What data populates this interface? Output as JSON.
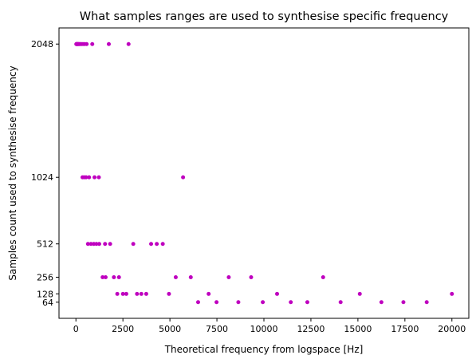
{
  "chart_data": {
    "type": "scatter",
    "title": "What samples ranges are used to synthesise specific frequency",
    "xlabel": "Theoretical frequency from logspace [Hz]",
    "ylabel": "Samples count used to synthesise frequency",
    "xlim": [
      -900,
      20900
    ],
    "ylim": [
      -60,
      2172
    ],
    "xticks": [
      0,
      2500,
      5000,
      7500,
      10000,
      12500,
      15000,
      17500,
      20000
    ],
    "yticks": [
      64,
      128,
      256,
      512,
      1024,
      2048
    ],
    "marker_color": "#bf00bf",
    "grid": false,
    "legend": "none",
    "points": [
      {
        "x": 20,
        "y": 2048
      },
      {
        "x": 30,
        "y": 2048
      },
      {
        "x": 45,
        "y": 2048
      },
      {
        "x": 60,
        "y": 2048
      },
      {
        "x": 80,
        "y": 2048
      },
      {
        "x": 100,
        "y": 2048
      },
      {
        "x": 125,
        "y": 2048
      },
      {
        "x": 155,
        "y": 2048
      },
      {
        "x": 190,
        "y": 2048
      },
      {
        "x": 240,
        "y": 2048
      },
      {
        "x": 300,
        "y": 2048
      },
      {
        "x": 375,
        "y": 2048
      },
      {
        "x": 460,
        "y": 2048
      },
      {
        "x": 570,
        "y": 2048
      },
      {
        "x": 870,
        "y": 2048
      },
      {
        "x": 1750,
        "y": 2048
      },
      {
        "x": 2800,
        "y": 2048
      },
      {
        "x": 350,
        "y": 1024
      },
      {
        "x": 440,
        "y": 1024
      },
      {
        "x": 540,
        "y": 1024
      },
      {
        "x": 700,
        "y": 1024
      },
      {
        "x": 990,
        "y": 1024
      },
      {
        "x": 1220,
        "y": 1024
      },
      {
        "x": 5700,
        "y": 1024
      },
      {
        "x": 640,
        "y": 512
      },
      {
        "x": 800,
        "y": 512
      },
      {
        "x": 950,
        "y": 512
      },
      {
        "x": 1090,
        "y": 512
      },
      {
        "x": 1240,
        "y": 512
      },
      {
        "x": 1550,
        "y": 512
      },
      {
        "x": 1820,
        "y": 512
      },
      {
        "x": 3050,
        "y": 512
      },
      {
        "x": 4000,
        "y": 512
      },
      {
        "x": 4300,
        "y": 512
      },
      {
        "x": 4620,
        "y": 512
      },
      {
        "x": 1420,
        "y": 256
      },
      {
        "x": 1580,
        "y": 256
      },
      {
        "x": 2020,
        "y": 256
      },
      {
        "x": 2290,
        "y": 256
      },
      {
        "x": 5310,
        "y": 256
      },
      {
        "x": 6110,
        "y": 256
      },
      {
        "x": 8130,
        "y": 256
      },
      {
        "x": 9320,
        "y": 256
      },
      {
        "x": 13150,
        "y": 256
      },
      {
        "x": 2200,
        "y": 128
      },
      {
        "x": 2500,
        "y": 128
      },
      {
        "x": 2680,
        "y": 128
      },
      {
        "x": 3250,
        "y": 128
      },
      {
        "x": 3480,
        "y": 128
      },
      {
        "x": 3740,
        "y": 128
      },
      {
        "x": 4950,
        "y": 128
      },
      {
        "x": 7060,
        "y": 128
      },
      {
        "x": 10700,
        "y": 128
      },
      {
        "x": 15100,
        "y": 128
      },
      {
        "x": 20000,
        "y": 128
      },
      {
        "x": 6500,
        "y": 64
      },
      {
        "x": 7480,
        "y": 64
      },
      {
        "x": 8640,
        "y": 64
      },
      {
        "x": 9940,
        "y": 64
      },
      {
        "x": 11430,
        "y": 64
      },
      {
        "x": 12310,
        "y": 64
      },
      {
        "x": 14080,
        "y": 64
      },
      {
        "x": 16250,
        "y": 64
      },
      {
        "x": 17420,
        "y": 64
      },
      {
        "x": 18660,
        "y": 64
      }
    ]
  }
}
